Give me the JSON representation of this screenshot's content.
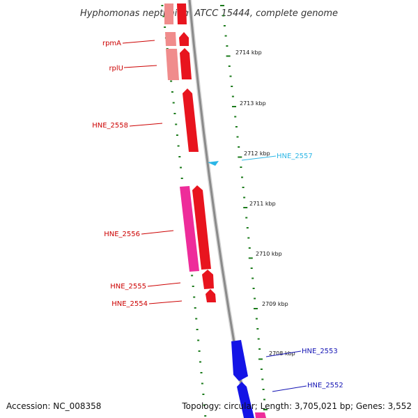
{
  "title": "Hyphomonas neptunium ATCC 15444, complete genome",
  "footer": {
    "accession": "Accession: NC_008358",
    "topology": "Topology: circular; Length: 3,705,021 bp; Genes: 3,552"
  },
  "colors": {
    "backbone": "#8a8a8a",
    "tick": "#1a7a1a",
    "forward_red": "#e8141e",
    "forward_light": "#f08c8c",
    "pink": "#ee2c9a",
    "blue": "#1414e6",
    "cyan": "#2ab6e6",
    "label_red": "#cc0000",
    "label_blue": "#1414b4",
    "label_cyan": "#2ab6e6"
  },
  "scale_labels": [
    "2714 kbp",
    "2713 kbp",
    "2712 kbp",
    "2711 kbp",
    "2710 kbp",
    "2709 kbp",
    "2708 kbp"
  ],
  "gene_labels": [
    {
      "text": "rpmA",
      "color": "label_red"
    },
    {
      "text": "rplU",
      "color": "label_red"
    },
    {
      "text": "HNE_2558",
      "color": "label_red"
    },
    {
      "text": "HNE_2557",
      "color": "label_cyan"
    },
    {
      "text": "HNE_2556",
      "color": "label_red"
    },
    {
      "text": "HNE_2555",
      "color": "label_red"
    },
    {
      "text": "HNE_2554",
      "color": "label_red"
    },
    {
      "text": "HNE_2553",
      "color": "label_blue"
    },
    {
      "text": "HNE_2552",
      "color": "label_blue"
    }
  ]
}
